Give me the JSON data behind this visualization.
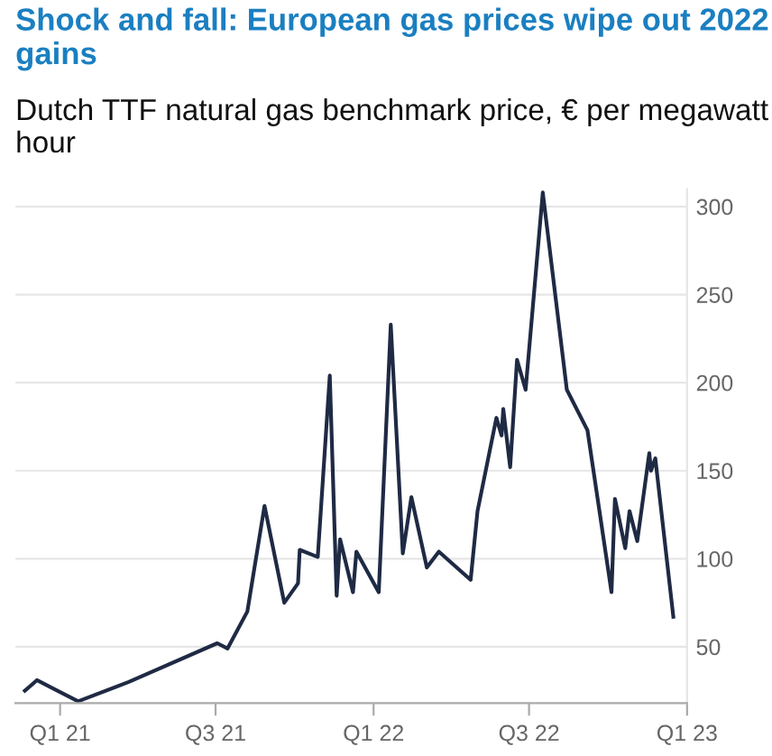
{
  "chart_data": {
    "type": "line",
    "title": "Shock and fall: European gas prices wipe out 2022 gains",
    "subtitle": "Dutch TTF natural gas benchmark price, € per megawatt hour",
    "x": [
      "2020-11-21",
      "2020-12-05",
      "2021-01-22",
      "2021-03-22",
      "2021-07-03",
      "2021-07-15",
      "2021-08-07",
      "2021-08-27",
      "2021-09-19",
      "2021-10-05",
      "2021-10-07",
      "2021-10-28",
      "2021-11-11",
      "2021-11-19",
      "2021-11-23",
      "2021-12-08",
      "2021-12-12",
      "2022-01-07",
      "2022-01-21",
      "2022-02-04",
      "2022-02-14",
      "2022-03-04",
      "2022-03-18",
      "2022-04-24",
      "2022-05-02",
      "2022-05-24",
      "2022-05-30",
      "2022-06-01",
      "2022-06-09",
      "2022-06-17",
      "2022-06-27",
      "2022-07-17",
      "2022-08-14",
      "2022-09-07",
      "2022-10-05",
      "2022-10-09",
      "2022-10-21",
      "2022-10-26",
      "2022-11-04",
      "2022-11-18",
      "2022-11-20",
      "2022-11-25",
      "2022-12-16"
    ],
    "series": [
      {
        "color": "#1f2a44",
        "values": [
          25,
          31,
          19,
          30,
          52,
          49,
          70,
          130,
          75,
          86,
          105,
          101,
          204,
          79,
          111,
          81,
          104,
          81,
          233,
          103,
          135,
          95,
          104,
          88,
          127,
          180,
          170,
          185,
          152,
          213,
          196,
          308,
          196,
          173,
          81,
          134,
          106,
          127,
          110,
          160,
          150,
          157,
          67
        ]
      }
    ],
    "xlim": [
      "2020-11-10",
      "2023-01-01"
    ],
    "xticks": [
      {
        "value": "2021-01-01",
        "label": "Q1 21"
      },
      {
        "value": "2021-07-01",
        "label": "Q3 21"
      },
      {
        "value": "2022-01-01",
        "label": "Q1 22"
      },
      {
        "value": "2022-07-01",
        "label": "Q3 22"
      },
      {
        "value": "2023-01-01",
        "label": "Q1 23"
      }
    ],
    "ylim": [
      18,
      310
    ],
    "yticks": [
      50,
      100,
      150,
      200,
      250,
      300
    ],
    "grid": "y",
    "line_style": "solid"
  }
}
